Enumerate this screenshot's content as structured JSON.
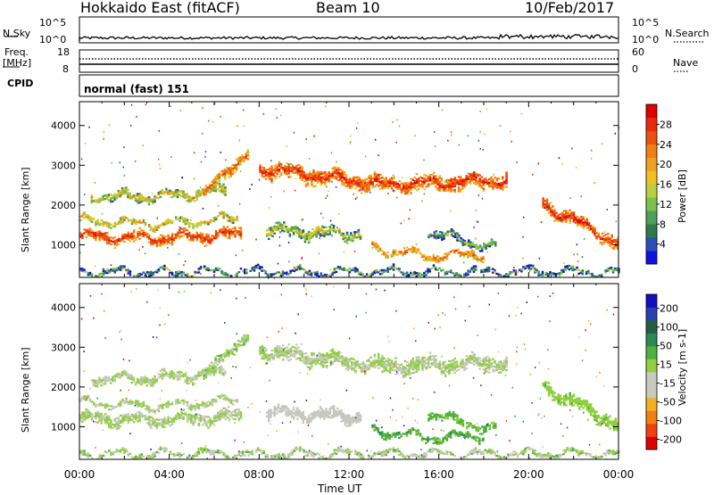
{
  "header": {
    "station": "Hokkaido East (fitACF)",
    "beam": "Beam 10",
    "date": "10/Feb/2017"
  },
  "top_panels": {
    "nsky_label": "N.Sky",
    "nsearch_label": "N.Search",
    "noise_ticks_left": [
      "10^5",
      "10^0"
    ],
    "noise_ticks_right": [
      "10^5",
      "10^0"
    ],
    "freq_label": "Freq.",
    "freq_unit": "[MHz]",
    "freq_ticks": [
      "18",
      "8"
    ],
    "nave_label": "Nave",
    "nave_ticks": [
      "60",
      "0"
    ],
    "cpid_label": "CPID",
    "cpid_value": "normal (fast) 151"
  },
  "chart_data": [
    {
      "type": "heatmap",
      "name": "power",
      "ylabel": "Slant Range [km]",
      "xlabel": "Time UT",
      "x_ticks": [
        "00:00",
        "04:00",
        "08:00",
        "12:00",
        "16:00",
        "20:00",
        "00:00"
      ],
      "y_ticks": [
        1000,
        2000,
        3000,
        4000
      ],
      "ylim": [
        180,
        4600
      ],
      "xlim_hours": [
        0,
        24
      ],
      "colorbar": {
        "label": "Power [dB]",
        "ticks": [
          "4",
          "8",
          "12",
          "16",
          "20",
          "24",
          "28"
        ],
        "range": [
          0,
          32
        ],
        "colors": [
          "#1010e0",
          "#2a4fb8",
          "#2f7a4a",
          "#4f9f5a",
          "#7cc04a",
          "#b8d040",
          "#f0c020",
          "#f0a020",
          "#ef7f10",
          "#ee5010",
          "#e82a0a",
          "#e00000"
        ]
      },
      "bands": [
        {
          "t": [
            0.0,
            7.2
          ],
          "center": [
            1200,
            1150,
            1250
          ],
          "width": 260,
          "value": 28,
          "spread": 3
        },
        {
          "t": [
            0.0,
            7.0
          ],
          "center": [
            1600,
            1500,
            1650
          ],
          "width": 140,
          "value": 20,
          "spread": 5
        },
        {
          "t": [
            0.5,
            6.5
          ],
          "center": [
            2200,
            2200,
            2350
          ],
          "width": 200,
          "value": 18,
          "spread": 6
        },
        {
          "t": [
            5.5,
            7.5
          ],
          "center": [
            2200,
            2900,
            3200
          ],
          "width": 260,
          "value": 24,
          "spread": 5
        },
        {
          "t": [
            8.0,
            19.0
          ],
          "center": [
            2900,
            2500,
            2600
          ],
          "width": 360,
          "value": 28,
          "spread": 4
        },
        {
          "t": [
            8.3,
            12.5
          ],
          "center": [
            1350,
            1300,
            1250
          ],
          "width": 260,
          "value": 16,
          "spread": 6
        },
        {
          "t": [
            13.0,
            18.0
          ],
          "center": [
            900,
            700,
            750
          ],
          "width": 160,
          "value": 24,
          "spread": 5
        },
        {
          "t": [
            15.5,
            18.5
          ],
          "center": [
            1300,
            1100,
            900
          ],
          "width": 180,
          "value": 12,
          "spread": 6
        },
        {
          "t": [
            20.6,
            24.0
          ],
          "center": [
            2000,
            1500,
            1000
          ],
          "width": 300,
          "value": 28,
          "spread": 4
        },
        {
          "t": [
            0.0,
            24.0
          ],
          "center": [
            300,
            300,
            300
          ],
          "width": 120,
          "value": 10,
          "spread": 8
        }
      ]
    },
    {
      "type": "heatmap",
      "name": "velocity",
      "ylabel": "Slant Range [km]",
      "xlabel": "Time UT",
      "x_ticks": [
        "00:00",
        "04:00",
        "08:00",
        "12:00",
        "16:00",
        "20:00",
        "00:00"
      ],
      "y_ticks": [
        1000,
        2000,
        3000,
        4000
      ],
      "ylim": [
        180,
        4600
      ],
      "xlim_hours": [
        0,
        24
      ],
      "colorbar": {
        "label": "Velocity [m s-1]",
        "ticks": [
          "200",
          "100",
          "50",
          "15",
          "-15",
          "-50",
          "-100",
          "-200"
        ],
        "range": [
          -250,
          250
        ],
        "colors": [
          "#e00000",
          "#f04010",
          "#f08010",
          "#f0b020",
          "#c8c8c0",
          "#c8c8c0",
          "#90d040",
          "#50b040",
          "#2a8a50",
          "#206040",
          "#2a40b0",
          "#1010c0"
        ]
      },
      "bands": [
        {
          "t": [
            0.0,
            7.2
          ],
          "center": [
            1200,
            1150,
            1250
          ],
          "width": 260,
          "value": 0,
          "spread": 10
        },
        {
          "t": [
            0.0,
            7.0
          ],
          "center": [
            1600,
            1500,
            1650
          ],
          "width": 140,
          "value": 0,
          "spread": 10
        },
        {
          "t": [
            0.5,
            6.5
          ],
          "center": [
            2200,
            2200,
            2350
          ],
          "width": 200,
          "value": 0,
          "spread": 30
        },
        {
          "t": [
            5.5,
            7.5
          ],
          "center": [
            2200,
            2900,
            3200
          ],
          "width": 260,
          "value": 10,
          "spread": 40
        },
        {
          "t": [
            8.0,
            19.0
          ],
          "center": [
            2900,
            2500,
            2600
          ],
          "width": 360,
          "value": 0,
          "spread": 10
        },
        {
          "t": [
            8.3,
            12.5
          ],
          "center": [
            1350,
            1300,
            1250
          ],
          "width": 260,
          "value": -30,
          "spread": 20
        },
        {
          "t": [
            13.0,
            18.0
          ],
          "center": [
            900,
            700,
            750
          ],
          "width": 160,
          "value": 60,
          "spread": 30
        },
        {
          "t": [
            15.5,
            18.5
          ],
          "center": [
            1300,
            1100,
            900
          ],
          "width": 180,
          "value": 50,
          "spread": 30
        },
        {
          "t": [
            20.6,
            24.0
          ],
          "center": [
            2000,
            1500,
            1000
          ],
          "width": 300,
          "value": 25,
          "spread": 20
        },
        {
          "t": [
            0.0,
            24.0
          ],
          "center": [
            300,
            300,
            300
          ],
          "width": 120,
          "value": 0,
          "spread": 60
        }
      ]
    }
  ]
}
